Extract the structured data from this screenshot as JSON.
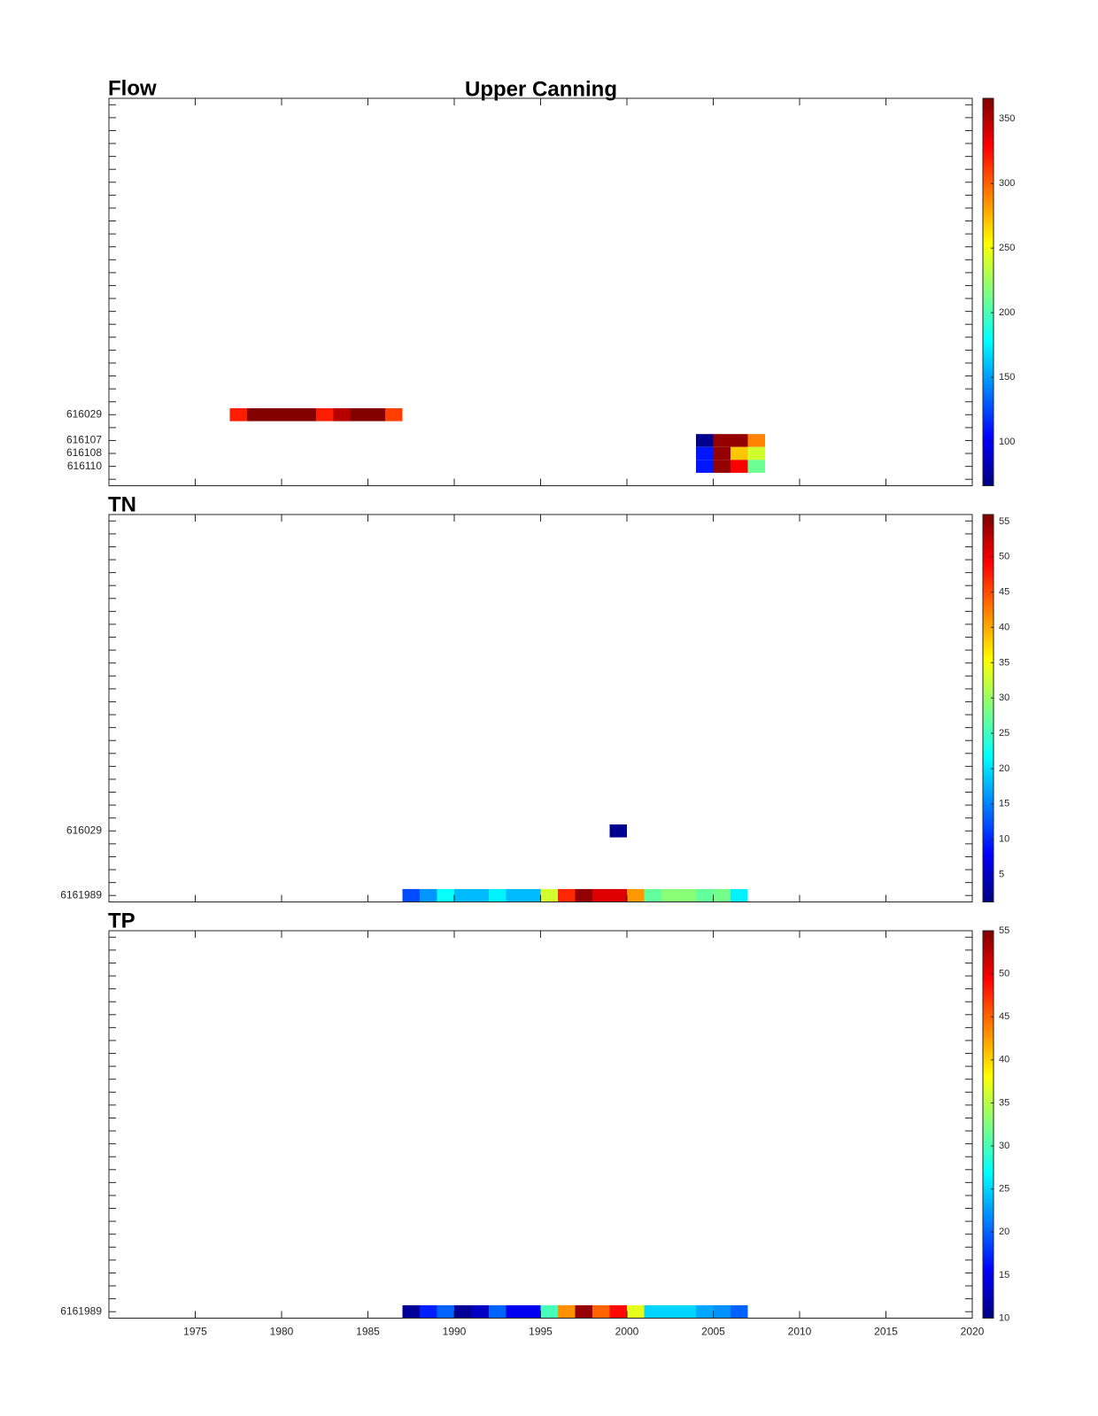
{
  "title": "Upper Canning",
  "chart_data": [
    {
      "type": "heatmap",
      "title": "Flow",
      "colormap": "jet",
      "xlim": [
        1970,
        2020
      ],
      "xticks": [
        1975,
        1980,
        1985,
        1990,
        1995,
        2000,
        2005,
        2010,
        2015,
        2020
      ],
      "show_xticklabels": false,
      "y_categories": [
        null,
        null,
        null,
        null,
        null,
        null,
        null,
        null,
        null,
        null,
        null,
        null,
        null,
        null,
        null,
        null,
        null,
        null,
        null,
        null,
        null,
        null,
        null,
        null,
        "616029",
        null,
        "616107",
        "616108",
        "616110",
        null
      ],
      "rows": [
        {
          "y": "616029",
          "x": [
            1977,
            1978,
            1979,
            1980,
            1981,
            1982,
            1983,
            1984,
            1985,
            1986
          ],
          "values": [
            320,
            365,
            365,
            365,
            365,
            320,
            350,
            365,
            365,
            310
          ]
        },
        {
          "y": "616107",
          "x": [
            2004,
            2005,
            2006,
            2007
          ],
          "values": [
            70,
            360,
            360,
            290
          ]
        },
        {
          "y": "616108",
          "x": [
            2004,
            2005,
            2006,
            2007
          ],
          "values": [
            110,
            360,
            270,
            240
          ]
        },
        {
          "y": "616110",
          "x": [
            2004,
            2005,
            2006,
            2007
          ],
          "values": [
            110,
            360,
            330,
            210
          ]
        }
      ],
      "clim": [
        66,
        366
      ],
      "cticks": [
        100,
        150,
        200,
        250,
        300,
        350
      ]
    },
    {
      "type": "heatmap",
      "title": "TN",
      "colormap": "jet",
      "xlim": [
        1970,
        2020
      ],
      "xticks": [
        1975,
        1980,
        1985,
        1990,
        1995,
        2000,
        2005,
        2010,
        2015,
        2020
      ],
      "show_xticklabels": false,
      "y_categories": [
        null,
        null,
        null,
        null,
        null,
        null,
        null,
        null,
        null,
        null,
        null,
        null,
        null,
        null,
        null,
        null,
        null,
        null,
        null,
        null,
        null,
        null,
        null,
        null,
        "616029",
        null,
        null,
        null,
        null,
        "6161989"
      ],
      "rows": [
        {
          "y": "616029",
          "x": [
            1999
          ],
          "values": [
            2
          ]
        },
        {
          "y": "6161989",
          "x": [
            1987,
            1988,
            1989,
            1990,
            1991,
            1992,
            1993,
            1994,
            1995,
            1996,
            1997,
            1998,
            1999,
            2000,
            2001,
            2002,
            2003,
            2004,
            2005,
            2006
          ],
          "values": [
            12,
            16,
            22,
            18,
            18,
            21,
            18,
            18,
            33,
            47,
            55,
            51,
            51,
            41,
            27,
            29,
            29,
            27,
            28,
            21
          ]
        }
      ],
      "clim": [
        1.1,
        56
      ],
      "cticks": [
        5,
        10,
        15,
        20,
        25,
        30,
        35,
        40,
        45,
        50,
        55
      ]
    },
    {
      "type": "heatmap",
      "title": "TP",
      "colormap": "jet",
      "xlim": [
        1970,
        2020
      ],
      "xticks": [
        1975,
        1980,
        1985,
        1990,
        1995,
        2000,
        2005,
        2010,
        2015,
        2020
      ],
      "show_xticklabels": true,
      "y_categories": [
        null,
        null,
        null,
        null,
        null,
        null,
        null,
        null,
        null,
        null,
        null,
        null,
        null,
        null,
        null,
        null,
        null,
        null,
        null,
        null,
        null,
        null,
        null,
        null,
        null,
        null,
        null,
        null,
        null,
        "6161989"
      ],
      "rows": [
        {
          "y": "6161989",
          "x": [
            1987,
            1988,
            1989,
            1990,
            1991,
            1992,
            1993,
            1994,
            1995,
            1996,
            1997,
            1998,
            1999,
            2000,
            2001,
            2002,
            2003,
            2004,
            2005,
            2006
          ],
          "values": [
            11,
            17,
            20,
            11,
            13,
            20,
            15,
            15,
            30,
            43,
            54,
            45,
            49,
            37,
            25,
            25,
            25,
            23,
            22,
            20
          ]
        }
      ],
      "clim": [
        10,
        55
      ],
      "cticks": [
        10,
        15,
        20,
        25,
        30,
        35,
        40,
        45,
        50,
        55
      ]
    }
  ]
}
